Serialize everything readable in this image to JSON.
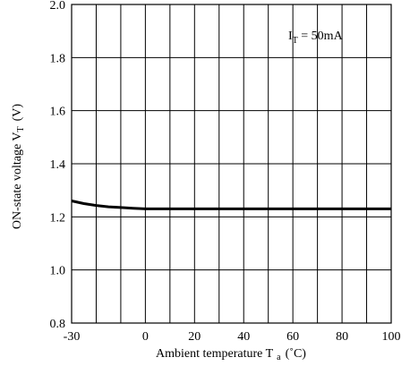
{
  "chart_data": {
    "type": "line",
    "title": "",
    "xlabel": {
      "text": "Ambient temperature T",
      "sub": "a",
      "unit": "(˚C)"
    },
    "ylabel": {
      "text": "ON-state voltage V",
      "sub": "T",
      "unit": "(V)"
    },
    "annotation": {
      "main": "I",
      "sub": "T",
      "rest": " = 50mA"
    },
    "xlim": [
      -30,
      100
    ],
    "ylim": [
      0.8,
      2.0
    ],
    "x_ticks": [
      -30,
      0,
      20,
      40,
      60,
      80,
      100
    ],
    "x_tick_labels": [
      "-30",
      "0",
      "20",
      "40",
      "60",
      "80",
      "100"
    ],
    "y_ticks": [
      0.8,
      1.0,
      1.2,
      1.4,
      1.6,
      1.8,
      2.0
    ],
    "y_tick_labels": [
      "0.8",
      "1.0",
      "1.2",
      "1.4",
      "1.6",
      "1.8",
      "2.0"
    ],
    "x_grid": [
      -30,
      -20,
      -10,
      0,
      10,
      20,
      30,
      40,
      50,
      60,
      70,
      80,
      90,
      100
    ],
    "y_grid": [
      0.8,
      1.0,
      1.2,
      1.4,
      1.6,
      1.8,
      2.0
    ],
    "grid": true,
    "series": [
      {
        "x": [
          -30,
          -25,
          -20,
          -15,
          -10,
          -5,
          0,
          20,
          40,
          60,
          80,
          100
        ],
        "y": [
          1.26,
          1.25,
          1.243,
          1.238,
          1.235,
          1.232,
          1.23,
          1.23,
          1.23,
          1.23,
          1.23,
          1.23
        ],
        "color": "#000000"
      }
    ]
  }
}
